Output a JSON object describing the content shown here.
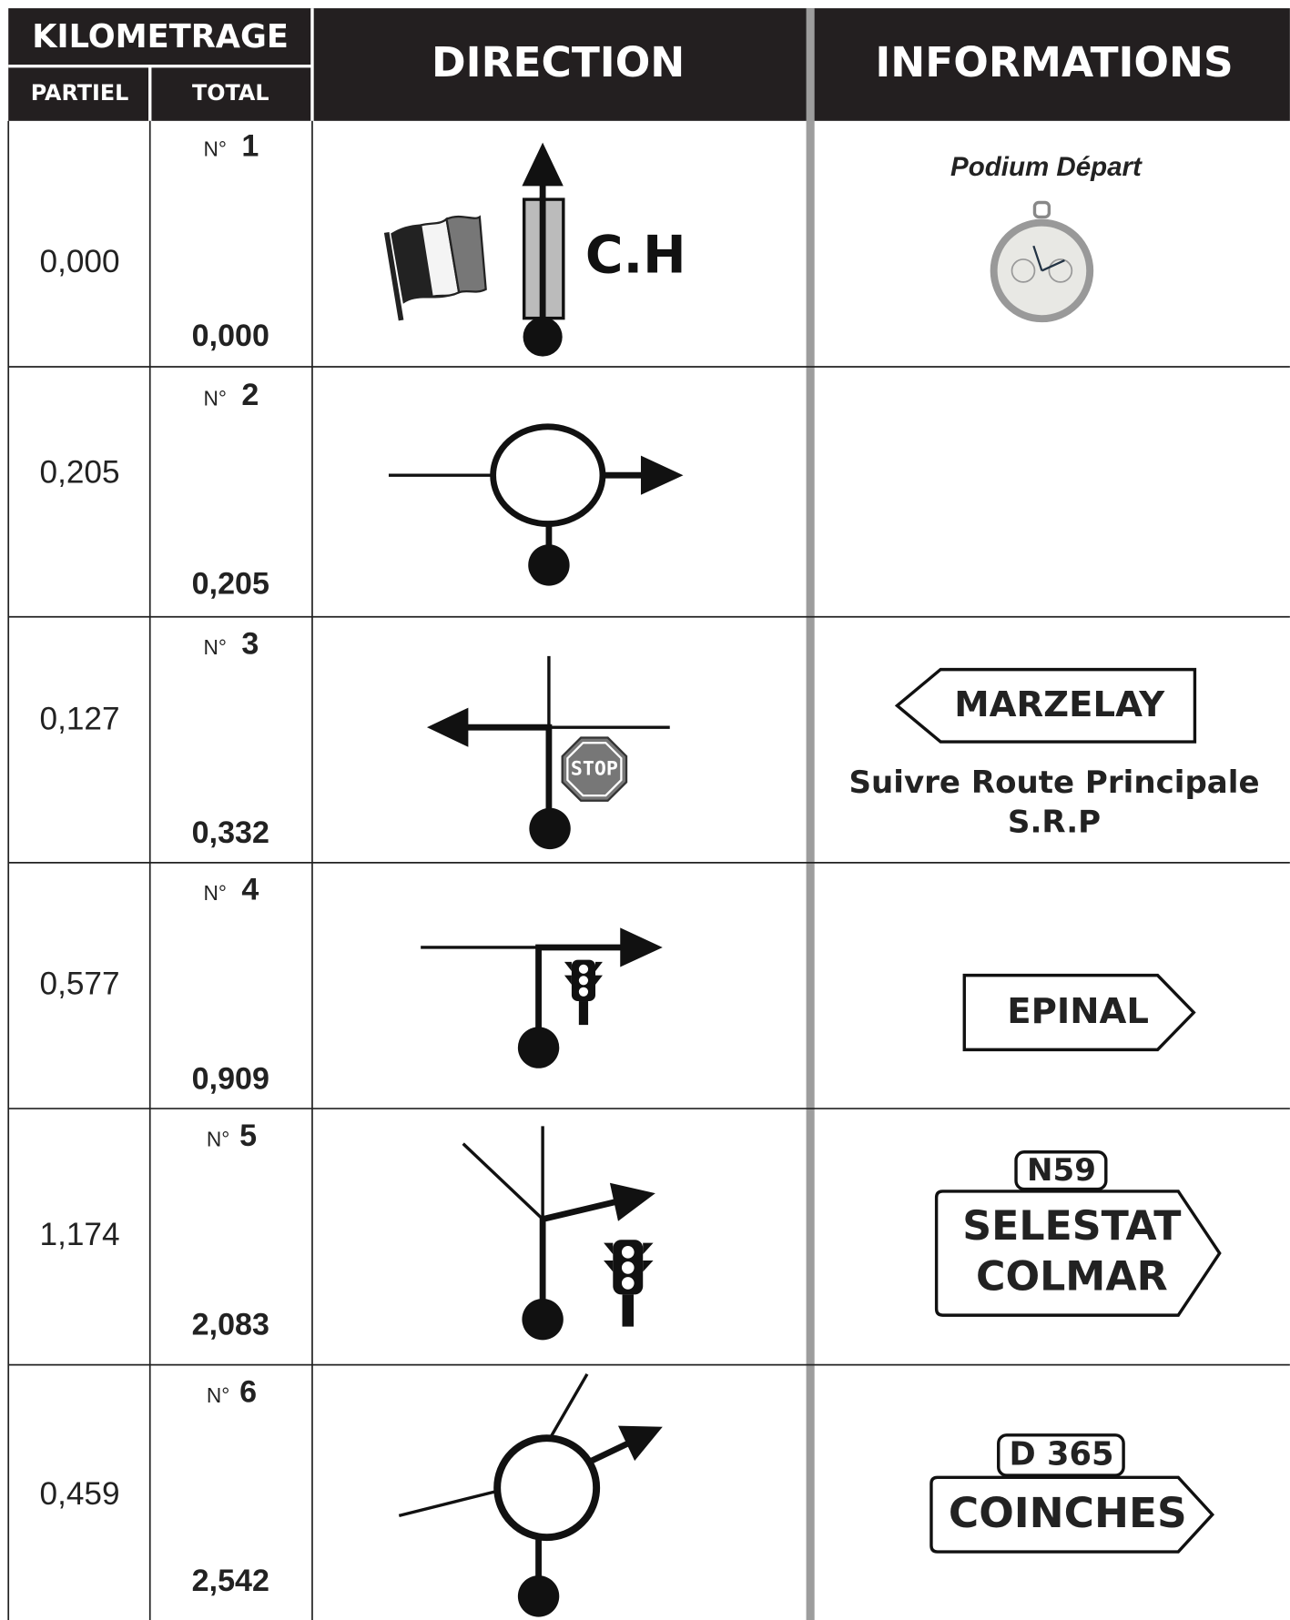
{
  "header": {
    "kilometrage": "KILOMETRAGE",
    "partiel": "PARTIEL",
    "total": "TOTAL",
    "direction": "DIRECTION",
    "informations": "INFORMATIONS"
  },
  "number_prefix": "N°",
  "rows": [
    {
      "number": "1",
      "partiel": "0,000",
      "total": "0,000",
      "direction_label": "C.H",
      "info": {
        "title": "Podium Départ"
      }
    },
    {
      "number": "2",
      "partiel": "0,205",
      "total": "0,205"
    },
    {
      "number": "3",
      "partiel": "0,127",
      "total": "0,332",
      "stop_sign": "STOP",
      "info": {
        "sign": "MARZELAY",
        "lines": [
          "Suivre Route Principale",
          "S.R.P"
        ]
      }
    },
    {
      "number": "4",
      "partiel": "0,577",
      "total": "0,909",
      "info": {
        "sign": "EPINAL"
      }
    },
    {
      "number": "5",
      "partiel": "1,174",
      "total": "2,083",
      "info": {
        "road": "N59",
        "sign_lines": [
          "SELESTAT",
          "COLMAR"
        ]
      }
    },
    {
      "number": "6",
      "partiel": "0,459",
      "total": "2,542",
      "info": {
        "road": "D 365",
        "sign": "COINCHES"
      }
    }
  ]
}
